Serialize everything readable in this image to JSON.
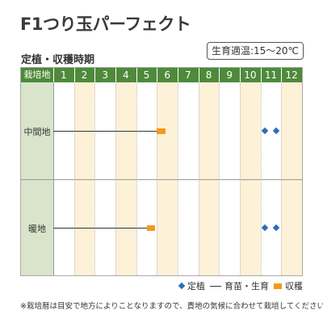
{
  "title": "F1つり玉パーフェクト",
  "subtitle": "定植・収穫時期",
  "temperature_badge": "生育適温:15～20℃",
  "table": {
    "header_label": "栽培地",
    "months": [
      "1",
      "2",
      "3",
      "4",
      "5",
      "6",
      "7",
      "8",
      "9",
      "10",
      "11",
      "12"
    ],
    "shaded_months": [
      2,
      4,
      6,
      8,
      10,
      12
    ],
    "rows": [
      {
        "label": "中間地",
        "growth": {
          "from_month": 1.0,
          "to_month": 6.0
        },
        "harvest": {
          "from_month": 6.0,
          "to_month": 6.4
        },
        "planting": [
          11.2,
          11.75
        ]
      },
      {
        "label": "暖地",
        "growth": {
          "from_month": 1.0,
          "to_month": 5.5
        },
        "harvest": {
          "from_month": 5.5,
          "to_month": 5.9
        },
        "planting": [
          11.2,
          11.75
        ]
      }
    ]
  },
  "legend": {
    "planting": "定植",
    "growth": "育苗・生育",
    "harvest": "収穫"
  },
  "colors": {
    "header": "#4f8a3b",
    "label_column": "#d9e4cb",
    "shade": "#fdf1d7",
    "harvest": "#f39a1c",
    "planting": "#2a6ebb"
  },
  "note": "※栽培暦は目安で地方によりことなりますので、貴地の気候に合わせて栽培してください。"
}
